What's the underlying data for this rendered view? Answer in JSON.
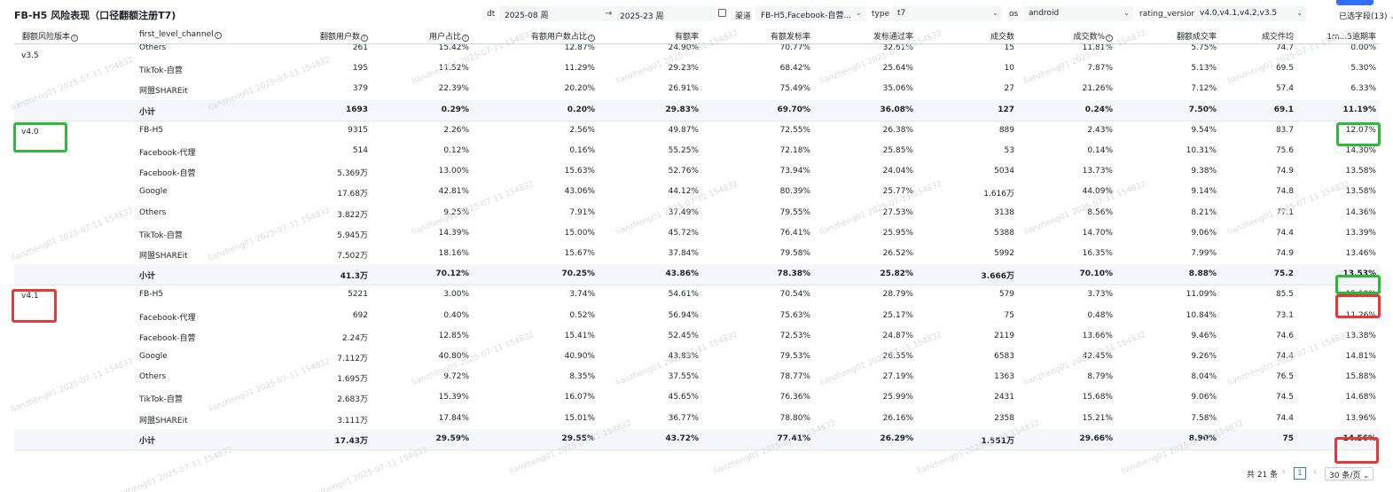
{
  "page": {
    "title": "FB-H5 风险表现（口径翻额注册T7)"
  },
  "filters": {
    "dt_label": "dt",
    "dt_start": "2025-08 周",
    "dt_end": "2025-23 周",
    "channel_label": "渠道",
    "channel_value": "FB-H5,Facebook-自营...",
    "type_label": "type",
    "type_value": "t7",
    "os_label": "os",
    "os_value": "android",
    "rating_label": "rating_version",
    "rating_value": "v4.0,v4.1,v4.2,v3.5",
    "fields_selected": "已选字段(13)"
  },
  "table": {
    "headers": [
      "翻额风险版本",
      "first_level_channel",
      "翻额用户数",
      "用户占比",
      "有额用户数占比",
      "有额率",
      "有额发标率",
      "发标通过率",
      "成交数",
      "成交数%",
      "翻额成交率",
      "成交件均",
      "1m...5逾期率"
    ],
    "groups": [
      {
        "version": "v3.5",
        "rows": [
          [
            "Others",
            "261",
            "15.42%",
            "12.87%",
            "24.90%",
            "70.77%",
            "32.61%",
            "15",
            "11.81%",
            "5.75%",
            "74.7",
            "0.00%"
          ],
          [
            "TikTok-自营",
            "195",
            "11.52%",
            "11.29%",
            "29.23%",
            "68.42%",
            "25.64%",
            "10",
            "7.87%",
            "5.13%",
            "69.5",
            "5.30%"
          ],
          [
            "网盟SHAREit",
            "379",
            "22.39%",
            "20.20%",
            "26.91%",
            "75.49%",
            "35.06%",
            "27",
            "21.26%",
            "7.12%",
            "57.4",
            "6.33%"
          ]
        ],
        "subtotal": [
          "小计",
          "1693",
          "0.29%",
          "0.20%",
          "29.83%",
          "69.70%",
          "36.08%",
          "127",
          "0.24%",
          "7.50%",
          "69.1",
          "11.19%"
        ]
      },
      {
        "version": "v4.0",
        "rows": [
          [
            "FB-H5",
            "9315",
            "2.26%",
            "2.56%",
            "49.87%",
            "72.55%",
            "26.38%",
            "889",
            "2.43%",
            "9.54%",
            "83.7",
            "12.07%"
          ],
          [
            "Facebook-代理",
            "514",
            "0.12%",
            "0.16%",
            "55.25%",
            "72.18%",
            "25.85%",
            "53",
            "0.14%",
            "10.31%",
            "75.6",
            "14.30%"
          ],
          [
            "Facebook-自营",
            "5.369万",
            "13.00%",
            "15.63%",
            "52.76%",
            "73.94%",
            "24.04%",
            "5034",
            "13.73%",
            "9.38%",
            "74.9",
            "13.58%"
          ],
          [
            "Google",
            "17.68万",
            "42.81%",
            "43.06%",
            "44.12%",
            "80.39%",
            "25.77%",
            "1.616万",
            "44.09%",
            "9.14%",
            "74.8",
            "13.58%"
          ],
          [
            "Others",
            "3.822万",
            "9.25%",
            "7.91%",
            "37.49%",
            "79.55%",
            "27.53%",
            "3138",
            "8.56%",
            "8.21%",
            "77.1",
            "14.36%"
          ],
          [
            "TikTok-自营",
            "5.945万",
            "14.39%",
            "15.00%",
            "45.72%",
            "76.41%",
            "25.95%",
            "5388",
            "14.70%",
            "9.06%",
            "74.4",
            "13.39%"
          ],
          [
            "网盟SHAREit",
            "7.502万",
            "18.16%",
            "15.67%",
            "37.84%",
            "79.58%",
            "26.52%",
            "5992",
            "16.35%",
            "7.99%",
            "74.9",
            "13.46%"
          ]
        ],
        "subtotal": [
          "小计",
          "41.3万",
          "70.12%",
          "70.25%",
          "43.86%",
          "78.38%",
          "25.82%",
          "3.666万",
          "70.10%",
          "8.88%",
          "75.2",
          "13.53%"
        ]
      },
      {
        "version": "v4.1",
        "rows": [
          [
            "FB-H5",
            "5221",
            "3.00%",
            "3.74%",
            "54.61%",
            "70.54%",
            "28.79%",
            "579",
            "3.73%",
            "11.09%",
            "85.5",
            "15.19%"
          ],
          [
            "Facebook-代理",
            "692",
            "0.40%",
            "0.52%",
            "56.94%",
            "75.63%",
            "25.17%",
            "75",
            "0.48%",
            "10.84%",
            "73.1",
            "11.26%"
          ],
          [
            "Facebook-自营",
            "2.24万",
            "12.85%",
            "15.41%",
            "52.45%",
            "72.53%",
            "24.87%",
            "2119",
            "13.66%",
            "9.46%",
            "74.6",
            "13.38%"
          ],
          [
            "Google",
            "7.112万",
            "40.80%",
            "40.90%",
            "43.83%",
            "79.53%",
            "26.55%",
            "6583",
            "42.45%",
            "9.26%",
            "74.4",
            "14.81%"
          ],
          [
            "Others",
            "1.695万",
            "9.72%",
            "8.35%",
            "37.55%",
            "78.77%",
            "27.19%",
            "1363",
            "8.79%",
            "8.04%",
            "76.5",
            "15.88%"
          ],
          [
            "TikTok-自营",
            "2.683万",
            "15.39%",
            "16.07%",
            "45.65%",
            "76.36%",
            "25.99%",
            "2431",
            "15.68%",
            "9.06%",
            "74.5",
            "14.68%"
          ],
          [
            "网盟SHAREit",
            "3.111万",
            "17.84%",
            "15.01%",
            "36.77%",
            "78.80%",
            "26.16%",
            "2358",
            "15.21%",
            "7.58%",
            "74.4",
            "13.96%"
          ]
        ],
        "subtotal": [
          "小计",
          "17.43万",
          "29.59%",
          "29.55%",
          "43.72%",
          "77.41%",
          "26.29%",
          "1.551万",
          "29.66%",
          "8.90%",
          "75",
          "14.56%"
        ]
      }
    ]
  },
  "pagination": {
    "total": "共 21 条",
    "current_page": "1",
    "page_size": "30 条/页"
  },
  "watermark": "lianzheng01 2025-07-11 154832",
  "colors": {
    "highlight_green": "#2fb83a",
    "highlight_red": "#e2393a",
    "accent": "#3370ff",
    "subtotal_bg": "#f4f6fb"
  }
}
